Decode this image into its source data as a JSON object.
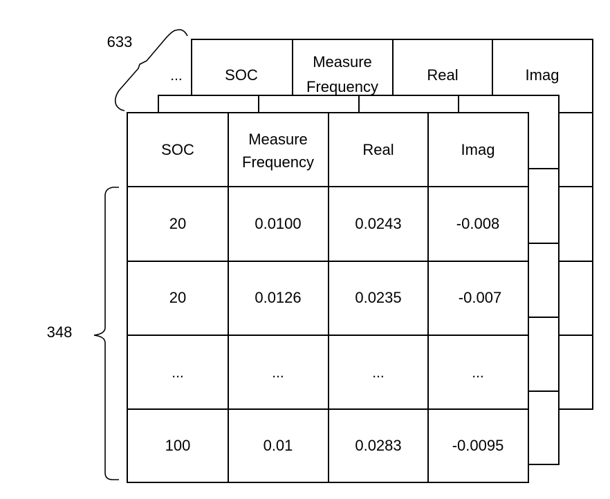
{
  "back_table": {
    "header": [
      "...",
      "SOC",
      "Measure Frequency",
      "Real",
      "Imag"
    ]
  },
  "front_table": {
    "header": [
      "SOC",
      "Measure Frequency",
      "Real",
      "Imag"
    ],
    "rows": [
      [
        "20",
        "0.0100",
        "0.0243",
        "-0.008"
      ],
      [
        "20",
        "0.0126",
        "0.0235",
        "-0.007"
      ],
      [
        "...",
        "...",
        "...",
        "..."
      ],
      [
        "100",
        "0.01",
        "0.0283",
        "-0.0095"
      ]
    ]
  },
  "dimensions": {
    "depth_count": "633",
    "row_count": "348"
  }
}
